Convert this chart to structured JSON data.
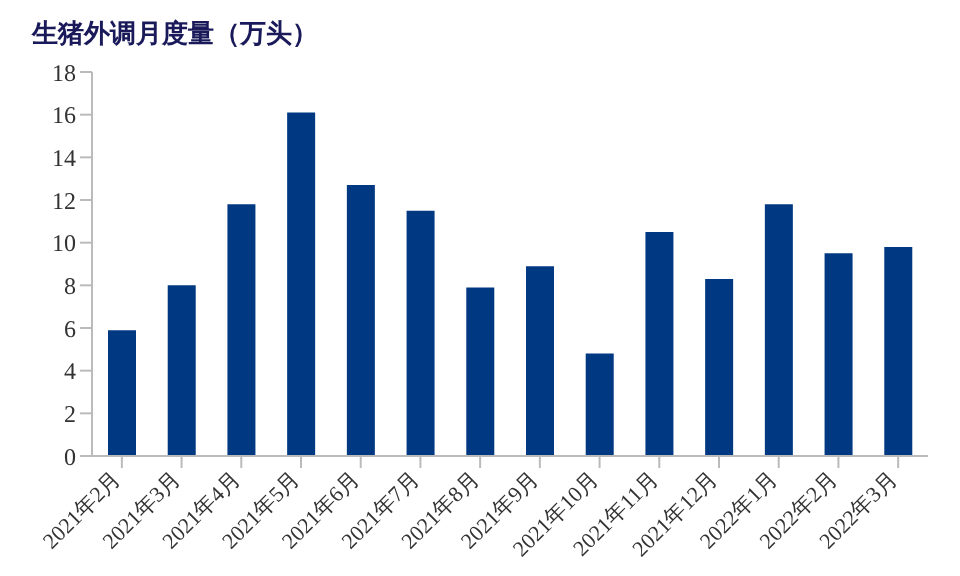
{
  "chart_data": {
    "type": "bar",
    "title": "生猪外调月度量（万头）",
    "categories": [
      "2021年2月",
      "2021年3月",
      "2021年4月",
      "2021年5月",
      "2021年6月",
      "2021年7月",
      "2021年8月",
      "2021年9月",
      "2021年10月",
      "2021年11月",
      "2021年12月",
      "2022年1月",
      "2022年2月",
      "2022年3月"
    ],
    "values": [
      5.9,
      8.0,
      11.8,
      16.1,
      12.7,
      11.5,
      7.9,
      8.9,
      4.8,
      10.5,
      8.3,
      11.8,
      9.5,
      9.8
    ],
    "color": "#003882",
    "ylim": [
      0,
      18
    ],
    "yticks": [
      0,
      2,
      4,
      6,
      8,
      10,
      12,
      14,
      16,
      18
    ],
    "grid": false,
    "legend": false
  }
}
